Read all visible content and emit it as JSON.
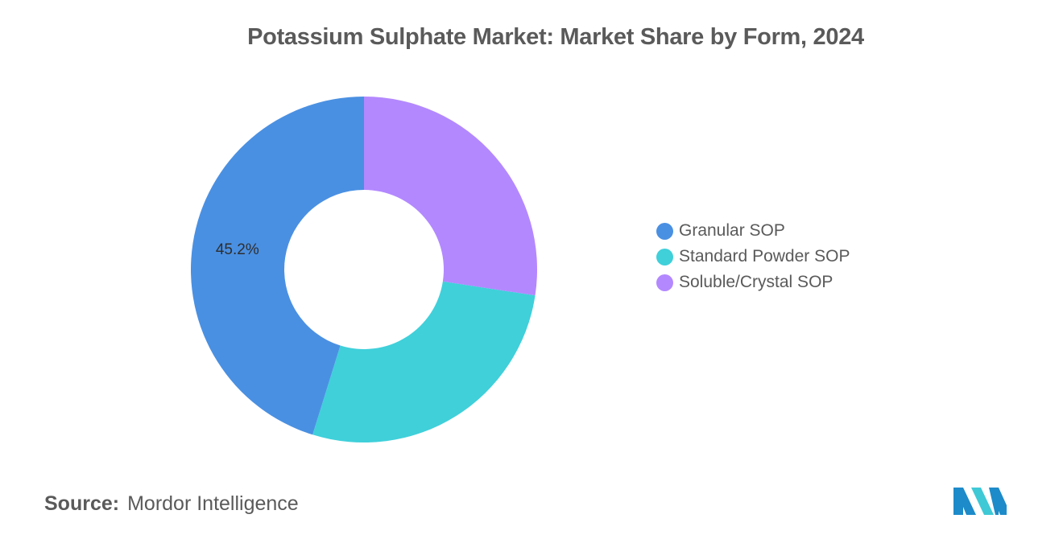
{
  "chart_data": {
    "type": "pie",
    "title": "Potassium Sulphate Market: Market Share by Form, 2024",
    "categories": [
      "Granular SOP",
      "Standard Powder SOP",
      "Soluble/Crystal SOP"
    ],
    "values": [
      45.2,
      27.4,
      27.4
    ],
    "colors": [
      "#4a90e2",
      "#3fd0da",
      "#b388ff"
    ],
    "data_labels": [
      "45.2%",
      "",
      ""
    ],
    "hole": true,
    "legend_position": "right"
  },
  "source": {
    "label": "Source:",
    "text": "Mordor Intelligence"
  },
  "logo": {
    "icon": "mordor-intelligence-logo-icon",
    "colors": [
      "#1d8bc9",
      "#3fc9d6"
    ]
  }
}
